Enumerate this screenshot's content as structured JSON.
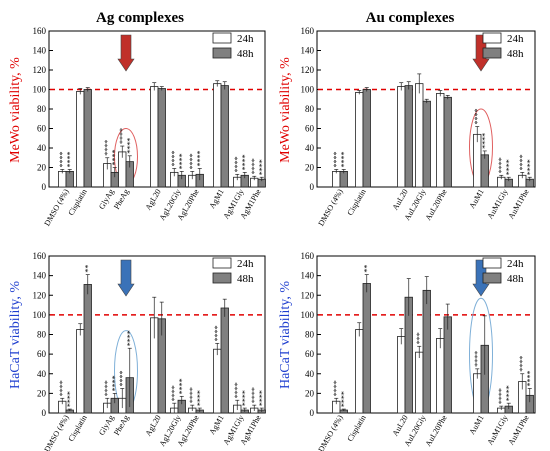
{
  "figure": {
    "titles": [
      "Ag complexes",
      "Au complexes"
    ],
    "ylabels": [
      "MeWo viability, %",
      "HaCaT viability, %"
    ],
    "legend": [
      "24h",
      "48h"
    ],
    "colors": {
      "bar24": "#ffffff",
      "bar48": "#808080",
      "refline": "#e00000",
      "red_arrow": "#c0302a",
      "blue_arrow": "#3a72b8",
      "red_label": "#e00000",
      "blue_label": "#1f3fcf",
      "red_ellipse": "#e06060",
      "blue_ellipse": "#7fb0d8"
    }
  },
  "chart_data": [
    {
      "type": "bar",
      "title": "Ag complexes",
      "ylabel": "MeWo viability, %",
      "ylim": [
        0,
        160
      ],
      "yticks": [
        0,
        20,
        40,
        60,
        80,
        100,
        120,
        140,
        160
      ],
      "reference_line": 100,
      "legend_position": "top-right",
      "categories": [
        "DMSO (4%)",
        "Cisplatin",
        "",
        "GlyAg",
        "PheAg",
        "AgL20",
        "AgL20Gly",
        "AgL20Phe",
        "AgM1",
        "AgM1Gly",
        "AgM1Phe"
      ],
      "series": [
        {
          "name": "24h",
          "values": [
            16,
            98,
            null,
            24,
            36,
            103,
            15,
            12,
            106,
            10,
            9
          ],
          "errors": [
            2,
            3,
            null,
            6,
            6,
            4,
            4,
            4,
            3,
            3,
            2
          ]
        },
        {
          "name": "48h",
          "values": [
            16,
            100,
            null,
            15,
            26,
            101,
            12,
            13,
            104,
            12,
            8
          ],
          "errors": [
            2,
            2,
            null,
            5,
            6,
            2,
            4,
            6,
            4,
            3,
            2
          ]
        }
      ],
      "annotations": [
        {
          "category": "DMSO (4%)",
          "series": "24h",
          "text": "****"
        },
        {
          "category": "DMSO (4%)",
          "series": "48h",
          "text": "****"
        },
        {
          "category": "GlyAg",
          "series": "24h",
          "text": "****"
        },
        {
          "category": "GlyAg",
          "series": "48h",
          "text": "****"
        },
        {
          "category": "PheAg",
          "series": "24h",
          "text": "****"
        },
        {
          "category": "PheAg",
          "series": "48h",
          "text": "****"
        },
        {
          "category": "AgL20Gly",
          "series": "24h",
          "text": "****"
        },
        {
          "category": "AgL20Gly",
          "series": "48h",
          "text": "****"
        },
        {
          "category": "AgL20Phe",
          "series": "24h",
          "text": "****"
        },
        {
          "category": "AgL20Phe",
          "series": "48h",
          "text": "****"
        },
        {
          "category": "AgM1Gly",
          "series": "24h",
          "text": "****"
        },
        {
          "category": "AgM1Gly",
          "series": "48h",
          "text": "****"
        },
        {
          "category": "AgM1Phe",
          "series": "24h",
          "text": "****"
        },
        {
          "category": "AgM1Phe",
          "series": "48h",
          "text": "****"
        }
      ],
      "highlight": {
        "category": "PheAg",
        "arrow_color": "red"
      }
    },
    {
      "type": "bar",
      "title": "Au complexes",
      "ylabel": "MeWo viability, %",
      "ylim": [
        0,
        160
      ],
      "yticks": [
        0,
        20,
        40,
        60,
        80,
        100,
        120,
        140,
        160
      ],
      "reference_line": 100,
      "legend_position": "top-right",
      "categories": [
        "DMSO (4%)",
        "Cisplatin",
        "",
        "AuL20",
        "AuL20Gly",
        "AuL20Phe",
        "AuM1",
        "AuM1Gly",
        "AuM1Phe"
      ],
      "series": [
        {
          "name": "24h",
          "values": [
            16,
            97,
            null,
            103,
            106,
            96,
            54,
            10,
            12
          ],
          "errors": [
            2,
            2,
            null,
            4,
            10,
            3,
            8,
            2,
            3
          ]
        },
        {
          "name": "48h",
          "values": [
            16,
            100,
            null,
            104,
            88,
            92,
            33,
            8,
            8
          ],
          "errors": [
            2,
            2,
            null,
            4,
            2,
            2,
            4,
            2,
            2
          ]
        }
      ],
      "annotations": [
        {
          "category": "DMSO (4%)",
          "series": "24h",
          "text": "****"
        },
        {
          "category": "DMSO (4%)",
          "series": "48h",
          "text": "****"
        },
        {
          "category": "AuM1",
          "series": "24h",
          "text": "****"
        },
        {
          "category": "AuM1",
          "series": "48h",
          "text": "****"
        },
        {
          "category": "AuM1Gly",
          "series": "24h",
          "text": "****"
        },
        {
          "category": "AuM1Gly",
          "series": "48h",
          "text": "****"
        },
        {
          "category": "AuM1Phe",
          "series": "24h",
          "text": "****"
        },
        {
          "category": "AuM1Phe",
          "series": "48h",
          "text": "****"
        }
      ],
      "highlight": {
        "category": "AuM1",
        "arrow_color": "red"
      }
    },
    {
      "type": "bar",
      "title": "",
      "ylabel": "HaCaT viability, %",
      "ylim": [
        0,
        160
      ],
      "yticks": [
        0,
        20,
        40,
        60,
        80,
        100,
        120,
        140,
        160
      ],
      "reference_line": 100,
      "legend_position": "top-right",
      "categories": [
        "DMSO (4%)",
        "Cisplatin",
        "",
        "GlyAg",
        "PheAg",
        "AgL20",
        "AgL20Gly",
        "AgL20Phe",
        "AgM1",
        "AgM1Gly",
        "AgM1Phe"
      ],
      "series": [
        {
          "name": "24h",
          "values": [
            12,
            85,
            null,
            10,
            15,
            97,
            5,
            5,
            65,
            8,
            5
          ],
          "errors": [
            3,
            6,
            null,
            5,
            10,
            21,
            5,
            3,
            6,
            5,
            3
          ]
        },
        {
          "name": "48h",
          "values": [
            3,
            131,
            null,
            15,
            36,
            96,
            13,
            3,
            107,
            3,
            3
          ],
          "errors": [
            1,
            10,
            null,
            5,
            30,
            17,
            4,
            2,
            9,
            2,
            2
          ]
        }
      ],
      "annotations": [
        {
          "category": "DMSO (4%)",
          "series": "24h",
          "text": "****"
        },
        {
          "category": "DMSO (4%)",
          "series": "48h",
          "text": "****"
        },
        {
          "category": "Cisplatin",
          "series": "48h",
          "text": "**"
        },
        {
          "category": "GlyAg",
          "series": "24h",
          "text": "****"
        },
        {
          "category": "GlyAg",
          "series": "48h",
          "text": "****"
        },
        {
          "category": "PheAg",
          "series": "24h",
          "text": "****"
        },
        {
          "category": "PheAg",
          "series": "48h",
          "text": "****"
        },
        {
          "category": "AgL20Gly",
          "series": "24h",
          "text": "****"
        },
        {
          "category": "AgL20Gly",
          "series": "48h",
          "text": "****"
        },
        {
          "category": "AgL20Phe",
          "series": "24h",
          "text": "****"
        },
        {
          "category": "AgL20Phe",
          "series": "48h",
          "text": "****"
        },
        {
          "category": "AgM1",
          "series": "24h",
          "text": "****"
        },
        {
          "category": "AgM1Gly",
          "series": "24h",
          "text": "****"
        },
        {
          "category": "AgM1Gly",
          "series": "48h",
          "text": "****"
        },
        {
          "category": "AgM1Phe",
          "series": "24h",
          "text": "****"
        },
        {
          "category": "AgM1Phe",
          "series": "48h",
          "text": "****"
        }
      ],
      "highlight": {
        "category": "PheAg",
        "arrow_color": "blue"
      }
    },
    {
      "type": "bar",
      "title": "",
      "ylabel": "HaCaT viability, %",
      "ylim": [
        0,
        160
      ],
      "yticks": [
        0,
        20,
        40,
        60,
        80,
        100,
        120,
        140,
        160
      ],
      "reference_line": 100,
      "legend_position": "top-right",
      "categories": [
        "DMSO (4%)",
        "Cisplatin",
        "",
        "AuL20",
        "AuL20Gly",
        "AuL20Phe",
        "AuM1",
        "AuM1Gly",
        "AuM1Phe"
      ],
      "series": [
        {
          "name": "24h",
          "values": [
            12,
            85,
            null,
            78,
            62,
            76,
            40,
            5,
            32
          ],
          "errors": [
            3,
            7,
            null,
            8,
            6,
            10,
            5,
            2,
            8
          ]
        },
        {
          "name": "48h",
          "values": [
            3,
            132,
            null,
            118,
            125,
            98,
            69,
            7,
            18
          ],
          "errors": [
            1,
            9,
            null,
            19,
            14,
            13,
            30,
            3,
            7
          ]
        }
      ],
      "annotations": [
        {
          "category": "DMSO (4%)",
          "series": "24h",
          "text": "****"
        },
        {
          "category": "DMSO (4%)",
          "series": "48h",
          "text": "****"
        },
        {
          "category": "Cisplatin",
          "series": "48h",
          "text": "**"
        },
        {
          "category": "AuL20Gly",
          "series": "24h",
          "text": "***"
        },
        {
          "category": "AuM1",
          "series": "24h",
          "text": "****"
        },
        {
          "category": "AuM1Gly",
          "series": "24h",
          "text": "****"
        },
        {
          "category": "AuM1Gly",
          "series": "48h",
          "text": "****"
        },
        {
          "category": "AuM1Phe",
          "series": "24h",
          "text": "****"
        },
        {
          "category": "AuM1Phe",
          "series": "48h",
          "text": "****"
        }
      ],
      "highlight": {
        "category": "AuM1",
        "arrow_color": "blue"
      }
    }
  ]
}
